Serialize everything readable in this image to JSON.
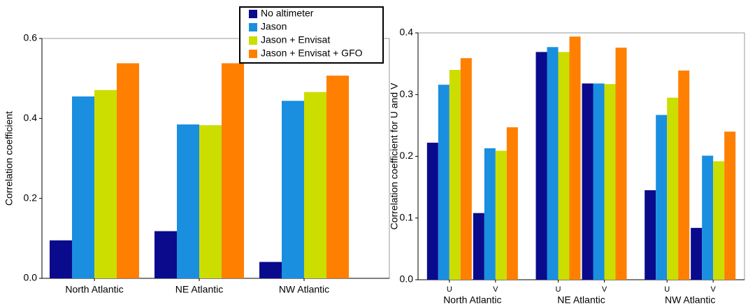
{
  "chart_data": [
    {
      "type": "bar",
      "ylabel": "Correlation coefficient",
      "categories": [
        "North Atlantic",
        "NE Atlantic",
        "NW Atlantic"
      ],
      "series": [
        {
          "name": "No altimeter",
          "color": "#0a0a8c",
          "values": [
            0.095,
            0.118,
            0.041
          ]
        },
        {
          "name": "Jason",
          "color": "#1a8fe0",
          "values": [
            0.455,
            0.385,
            0.444
          ]
        },
        {
          "name": "Jason + Envisat",
          "color": "#ccdd00",
          "values": [
            0.471,
            0.383,
            0.466
          ]
        },
        {
          "name": "Jason + Envisat + GFO",
          "color": "#ff7f00",
          "values": [
            0.538,
            0.538,
            0.507
          ]
        }
      ],
      "ylim": [
        0,
        0.6
      ],
      "yticks": [
        {
          "value": 0,
          "label": "0.0"
        },
        0.2,
        0.4,
        0.6
      ],
      "legend": "top"
    },
    {
      "type": "bar",
      "ylabel": "Correlation coefficient for U and V",
      "categories": [
        "U",
        "V",
        "U",
        "V",
        "U",
        "V"
      ],
      "groups": [
        "North Atlantic",
        "NE Atlantic",
        "NW Atlantic"
      ],
      "series": [
        {
          "color": "#0a0a8c",
          "values": [
            0.222,
            0.108,
            0.369,
            0.318,
            0.145,
            0.084
          ]
        },
        {
          "color": "#1a8fe0",
          "values": [
            0.316,
            0.213,
            0.377,
            0.318,
            0.267,
            0.201
          ]
        },
        {
          "color": "#ccdd00",
          "values": [
            0.34,
            0.209,
            0.369,
            0.317,
            0.295,
            0.192
          ]
        },
        {
          "color": "#ff7f00",
          "values": [
            0.359,
            0.247,
            0.394,
            0.376,
            0.339,
            0.24
          ]
        }
      ],
      "ylim": [
        0,
        0.4
      ],
      "yticks": [
        {
          "value": 0,
          "label": "0.0"
        },
        0.1,
        0.2,
        0.3,
        0.4
      ]
    }
  ]
}
